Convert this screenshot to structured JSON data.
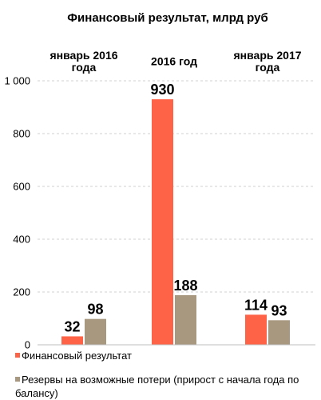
{
  "chart_data": {
    "type": "bar",
    "title": "Финансовый результат, млрд руб",
    "categories": [
      [
        "январь 2016",
        "года"
      ],
      [
        "2016 год"
      ],
      [
        "январь 2017",
        "года"
      ]
    ],
    "series": [
      {
        "name": "Финансовый результат",
        "values": [
          32,
          930,
          114
        ],
        "color": "#ff6347"
      },
      {
        "name": "Резервы на возможные потери (прирост с начала года по балансу)",
        "values": [
          98,
          188,
          93
        ],
        "color": "#a89880"
      }
    ],
    "ylim": [
      0,
      1000
    ],
    "yticks": [
      0,
      200,
      400,
      600,
      800,
      1000
    ],
    "ytick_labels": [
      "0",
      "200",
      "400",
      "600",
      "800",
      "1 000"
    ],
    "legend_lines": [
      [
        "Финансовый результат"
      ],
      [
        "Резервы на возможные потери (прирост с начала года по",
        "балансу)"
      ]
    ],
    "grid": true,
    "legend": "bottom",
    "xlabel": "",
    "ylabel": ""
  }
}
